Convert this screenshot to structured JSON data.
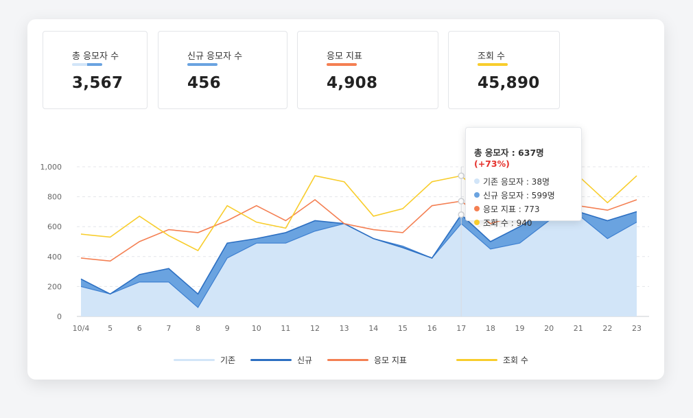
{
  "stats": [
    {
      "label": "총 응모자 수",
      "value": "3,567"
    },
    {
      "label": "신규 응모자 수",
      "value": "456"
    },
    {
      "label": "응모 지표",
      "value": "4,908"
    },
    {
      "label": "조회 수",
      "value": "45,890"
    }
  ],
  "colors": {
    "existing_fill": "#d2e5f8",
    "new_fill": "#6aa3e0",
    "new_line": "#2c6fc2",
    "index_line": "#f47f52",
    "views_line": "#f8cd2c",
    "grid": "#e4e6ea"
  },
  "chart_data": {
    "type": "area",
    "categories": [
      "10/4",
      "5",
      "6",
      "7",
      "8",
      "9",
      "10",
      "11",
      "12",
      "13",
      "14",
      "15",
      "16",
      "17",
      "18",
      "19",
      "20",
      "21",
      "22",
      "23"
    ],
    "ylim": [
      0,
      1000
    ],
    "yticks": [
      "0",
      "200",
      "400",
      "600",
      "800",
      "1,000"
    ],
    "series": [
      {
        "name": "기존",
        "values": [
          200,
          150,
          230,
          230,
          60,
          390,
          490,
          490,
          570,
          620,
          520,
          470,
          390,
          620,
          450,
          490,
          640,
          680,
          520,
          630
        ]
      },
      {
        "name": "신규",
        "values": [
          250,
          150,
          280,
          320,
          150,
          490,
          520,
          560,
          640,
          620,
          520,
          460,
          390,
          680,
          500,
          600,
          720,
          700,
          640,
          700
        ]
      },
      {
        "name": "응모 지표",
        "values": [
          390,
          370,
          500,
          580,
          560,
          640,
          740,
          640,
          780,
          620,
          580,
          560,
          740,
          770,
          620,
          680,
          710,
          740,
          710,
          780
        ]
      },
      {
        "name": "조회 수",
        "values": [
          550,
          530,
          670,
          540,
          440,
          740,
          630,
          590,
          940,
          900,
          670,
          720,
          900,
          940,
          760,
          730,
          750,
          940,
          760,
          940
        ]
      }
    ],
    "tooltip": {
      "title": "총 응모자 : 637명",
      "change": "(+73%)",
      "rows": [
        "기존 응모자 : 38명",
        "신규 응모자 : 599명",
        "응모 지표 : 773",
        "조회 수 : 940"
      ]
    },
    "legend": [
      "기존",
      "신규",
      "응모 지표",
      "조회 수"
    ]
  }
}
